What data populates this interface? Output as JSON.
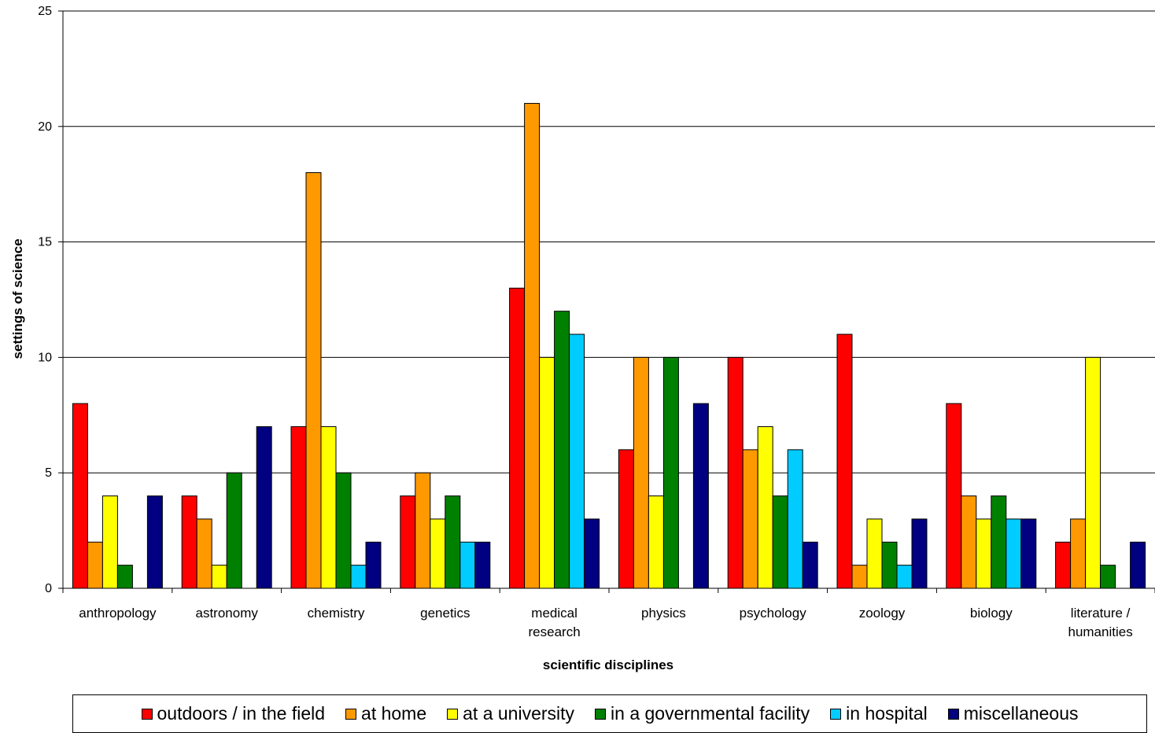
{
  "chart_data": {
    "type": "bar",
    "title": "",
    "xlabel": "scientific disciplines",
    "ylabel": "settings of science",
    "ylim": [
      0,
      25
    ],
    "yticks": [
      0,
      5,
      10,
      15,
      20,
      25
    ],
    "grid": true,
    "legend_position": "bottom",
    "categories": [
      [
        "anthropology"
      ],
      [
        "astronomy"
      ],
      [
        "chemistry"
      ],
      [
        "genetics"
      ],
      [
        "medical",
        "research"
      ],
      [
        "physics"
      ],
      [
        "psychology"
      ],
      [
        "zoology"
      ],
      [
        "biology"
      ],
      [
        "literature /",
        "humanities"
      ]
    ],
    "series": [
      {
        "name": "outdoors / in the field",
        "color": "#ff0000",
        "values": [
          8,
          4,
          7,
          4,
          13,
          6,
          10,
          11,
          8,
          2
        ]
      },
      {
        "name": "at home",
        "color": "#ff9900",
        "values": [
          2,
          3,
          18,
          5,
          21,
          10,
          6,
          1,
          4,
          3
        ]
      },
      {
        "name": "at a university",
        "color": "#ffff00",
        "values": [
          4,
          1,
          7,
          3,
          10,
          4,
          7,
          3,
          3,
          10
        ]
      },
      {
        "name": "in a governmental facility",
        "color": "#008000",
        "values": [
          1,
          5,
          5,
          4,
          12,
          10,
          4,
          2,
          4,
          1
        ]
      },
      {
        "name": "in hospital",
        "color": "#00ccff",
        "values": [
          0,
          0,
          1,
          2,
          11,
          0,
          6,
          1,
          3,
          0
        ]
      },
      {
        "name": "miscellaneous",
        "color": "#000080",
        "values": [
          4,
          7,
          2,
          2,
          3,
          8,
          2,
          3,
          3,
          2
        ]
      }
    ]
  }
}
